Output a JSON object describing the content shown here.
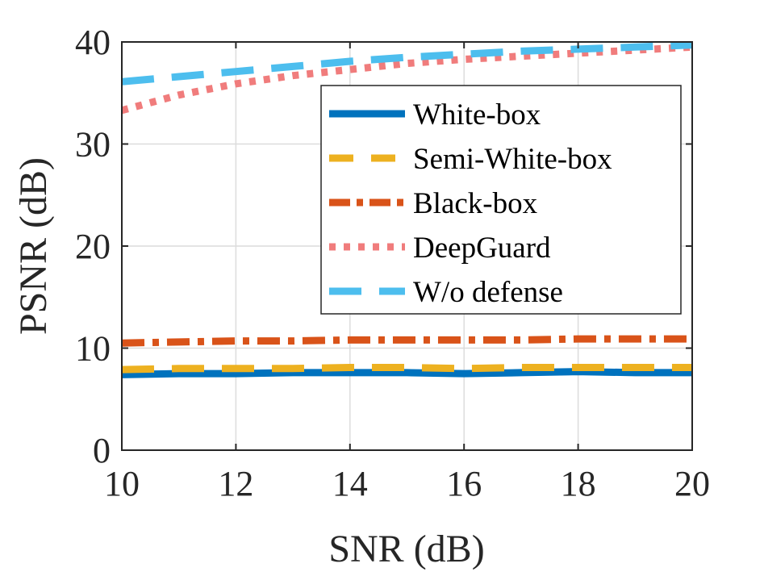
{
  "chart_data": {
    "type": "line",
    "xlabel": "SNR (dB)",
    "ylabel": "PSNR (dB)",
    "xlim": [
      10,
      20
    ],
    "ylim": [
      0,
      40
    ],
    "xticks": [
      10,
      12,
      14,
      16,
      18,
      20
    ],
    "yticks": [
      0,
      10,
      20,
      30,
      40
    ],
    "grid": true,
    "legend_position": "right",
    "series": [
      {
        "name": "White-box",
        "color": "#0072BD",
        "style": "solid",
        "x": [
          10,
          11,
          12,
          13,
          14,
          15,
          16,
          17,
          18,
          19,
          20
        ],
        "y": [
          7.4,
          7.5,
          7.5,
          7.6,
          7.6,
          7.6,
          7.5,
          7.6,
          7.7,
          7.6,
          7.6
        ]
      },
      {
        "name": "Semi-White-box",
        "color": "#EDB120",
        "style": "dashed",
        "x": [
          10,
          11,
          12,
          13,
          14,
          15,
          16,
          17,
          18,
          19,
          20
        ],
        "y": [
          7.9,
          8.0,
          8.0,
          8.0,
          8.1,
          8.1,
          8.0,
          8.1,
          8.1,
          8.1,
          8.1
        ]
      },
      {
        "name": "Black-box",
        "color": "#D95319",
        "style": "dashdot",
        "x": [
          10,
          11,
          12,
          13,
          14,
          15,
          16,
          17,
          18,
          19,
          20
        ],
        "y": [
          10.5,
          10.6,
          10.7,
          10.7,
          10.8,
          10.8,
          10.8,
          10.8,
          10.9,
          10.9,
          10.9
        ]
      },
      {
        "name": "DeepGuard",
        "color": "#F07C7C",
        "style": "dotted",
        "x": [
          10,
          11,
          12,
          13,
          14,
          15,
          16,
          17,
          18,
          19,
          20
        ],
        "y": [
          33.3,
          34.8,
          35.9,
          36.7,
          37.3,
          37.9,
          38.3,
          38.6,
          38.9,
          39.2,
          39.5
        ]
      },
      {
        "name": "W/o defense",
        "color": "#4DBEEE",
        "style": "dashed",
        "x": [
          10,
          11,
          12,
          13,
          14,
          15,
          16,
          17,
          18,
          19,
          20
        ],
        "y": [
          36.1,
          36.6,
          37.1,
          37.6,
          38.1,
          38.5,
          38.8,
          39.1,
          39.3,
          39.5,
          39.7
        ]
      }
    ]
  }
}
